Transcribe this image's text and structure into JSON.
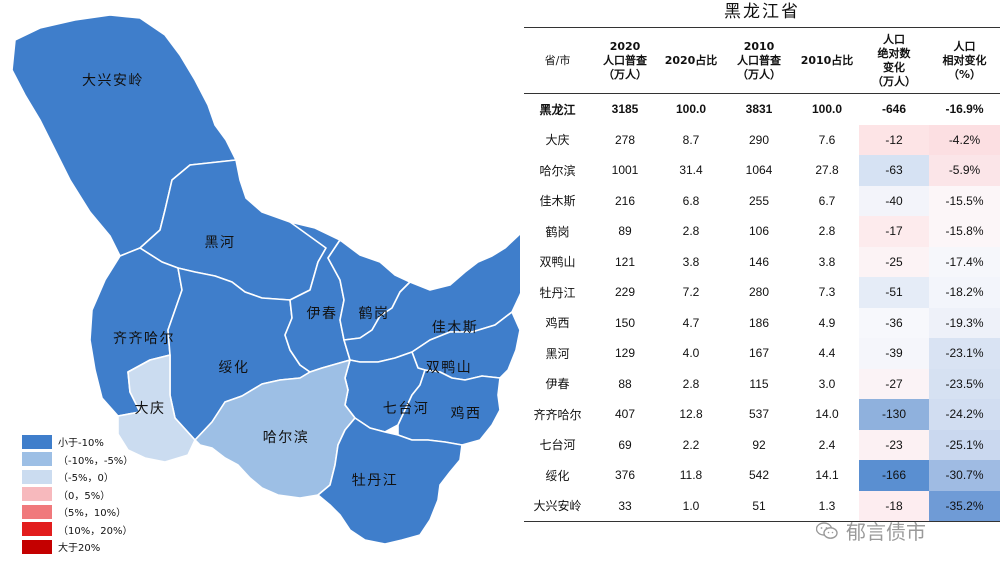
{
  "table_title": "黑龙江省",
  "headers": [
    {
      "lines": [
        "省/市"
      ]
    },
    {
      "lines": [
        "2020",
        "人口普查",
        "（万人）"
      ]
    },
    {
      "lines": [
        "2020占比"
      ]
    },
    {
      "lines": [
        "2010",
        "人口普查",
        "（万人）"
      ]
    },
    {
      "lines": [
        "2010占比"
      ]
    },
    {
      "lines": [
        "人口",
        "绝对数",
        "变化",
        "（万人）"
      ]
    },
    {
      "lines": [
        "人口",
        "相对变化",
        "（%）"
      ]
    }
  ],
  "rows": [
    {
      "name": "黑龙江",
      "pop2020": "3185",
      "share2020": "100.0",
      "pop2010": "3831",
      "share2010": "100.0",
      "abs_change": "-646",
      "rel_change": "-16.9%",
      "abs_color": "#ffffff",
      "rel_color": "#ffffff"
    },
    {
      "name": "大庆",
      "pop2020": "278",
      "share2020": "8.7",
      "pop2010": "290",
      "share2010": "7.6",
      "abs_change": "-12",
      "rel_change": "-4.2%",
      "abs_color": "#fde4e6",
      "rel_color": "#fcdfe2"
    },
    {
      "name": "哈尔滨",
      "pop2020": "1001",
      "share2020": "31.4",
      "pop2010": "1064",
      "share2010": "27.8",
      "abs_change": "-63",
      "rel_change": "-5.9%",
      "abs_color": "#d6e2f3",
      "rel_color": "#fbe5e8"
    },
    {
      "name": "佳木斯",
      "pop2020": "216",
      "share2020": "6.8",
      "pop2010": "255",
      "share2010": "6.7",
      "abs_change": "-40",
      "rel_change": "-15.5%",
      "abs_color": "#f3f4fa",
      "rel_color": "#fcf6f8"
    },
    {
      "name": "鹤岗",
      "pop2020": "89",
      "share2020": "2.8",
      "pop2010": "106",
      "share2010": "2.8",
      "abs_change": "-17",
      "rel_change": "-15.8%",
      "abs_color": "#fdebed",
      "rel_color": "#fcf6f8"
    },
    {
      "name": "双鸭山",
      "pop2020": "121",
      "share2020": "3.8",
      "pop2010": "146",
      "share2010": "3.8",
      "abs_change": "-25",
      "rel_change": "-17.4%",
      "abs_color": "#fcf3f5",
      "rel_color": "#f6f7fb"
    },
    {
      "name": "牡丹江",
      "pop2020": "229",
      "share2020": "7.2",
      "pop2010": "280",
      "share2010": "7.3",
      "abs_change": "-51",
      "rel_change": "-18.2%",
      "abs_color": "#e5ecf7",
      "rel_color": "#f3f5fb"
    },
    {
      "name": "鸡西",
      "pop2020": "150",
      "share2020": "4.7",
      "pop2010": "186",
      "share2010": "4.9",
      "abs_change": "-36",
      "rel_change": "-19.3%",
      "abs_color": "#f7f8fc",
      "rel_color": "#eef1f9"
    },
    {
      "name": "黑河",
      "pop2020": "129",
      "share2020": "4.0",
      "pop2010": "167",
      "share2010": "4.4",
      "abs_change": "-39",
      "rel_change": "-23.1%",
      "abs_color": "#f5f6fb",
      "rel_color": "#d9e3f3"
    },
    {
      "name": "伊春",
      "pop2020": "88",
      "share2020": "2.8",
      "pop2010": "115",
      "share2010": "3.0",
      "abs_change": "-27",
      "rel_change": "-23.5%",
      "abs_color": "#fbf3f6",
      "rel_color": "#d6e1f2"
    },
    {
      "name": "齐齐哈尔",
      "pop2020": "407",
      "share2020": "12.8",
      "pop2010": "537",
      "share2010": "14.0",
      "abs_change": "-130",
      "rel_change": "-24.2%",
      "abs_color": "#8fb1dd",
      "rel_color": "#d1ddf1"
    },
    {
      "name": "七台河",
      "pop2020": "69",
      "share2020": "2.2",
      "pop2010": "92",
      "share2010": "2.4",
      "abs_change": "-23",
      "rel_change": "-25.1%",
      "abs_color": "#fcf1f3",
      "rel_color": "#cad8ef"
    },
    {
      "name": "绥化",
      "pop2020": "376",
      "share2020": "11.8",
      "pop2010": "542",
      "share2010": "14.1",
      "abs_change": "-166",
      "rel_change": "-30.7%",
      "abs_color": "#5a8fd1",
      "rel_color": "#9fbbe3"
    },
    {
      "name": "大兴安岭",
      "pop2020": "33",
      "share2020": "1.0",
      "pop2010": "51",
      "share2010": "1.3",
      "abs_change": "-18",
      "rel_change": "-35.2%",
      "abs_color": "#fdedf0",
      "rel_color": "#6f9bd6"
    }
  ],
  "map_labels": {
    "daxinganling": "大兴安岭",
    "heihe": "黑河",
    "qiqihaer": "齐齐哈尔",
    "yichun": "伊春",
    "hegang": "鹤岗",
    "jiamusi": "佳木斯",
    "suihua": "绥化",
    "shuangyashan": "双鸭山",
    "daqing": "大庆",
    "qitaihe": "七台河",
    "jixi": "鸡西",
    "haerbin": "哈尔滨",
    "mudanjiang": "牡丹江"
  },
  "map_colors": {
    "below_neg10": "#3f7ecb",
    "neg10_neg5": "#9dbfe5",
    "neg5_0": "#cbdcf0"
  },
  "legend": [
    {
      "label": "小于-10%",
      "color": "#3f7ecb"
    },
    {
      "label": "（-10%，-5%）",
      "color": "#9dbfe5"
    },
    {
      "label": "（-5%，0）",
      "color": "#cbdcf0"
    },
    {
      "label": "（0，5%）",
      "color": "#f7b9bd"
    },
    {
      "label": "（5%，10%）",
      "color": "#f0797c"
    },
    {
      "label": "（10%，20%）",
      "color": "#e21d1d"
    },
    {
      "label": "大于20%",
      "color": "#c40000"
    }
  ],
  "watermark": "郁言债市"
}
